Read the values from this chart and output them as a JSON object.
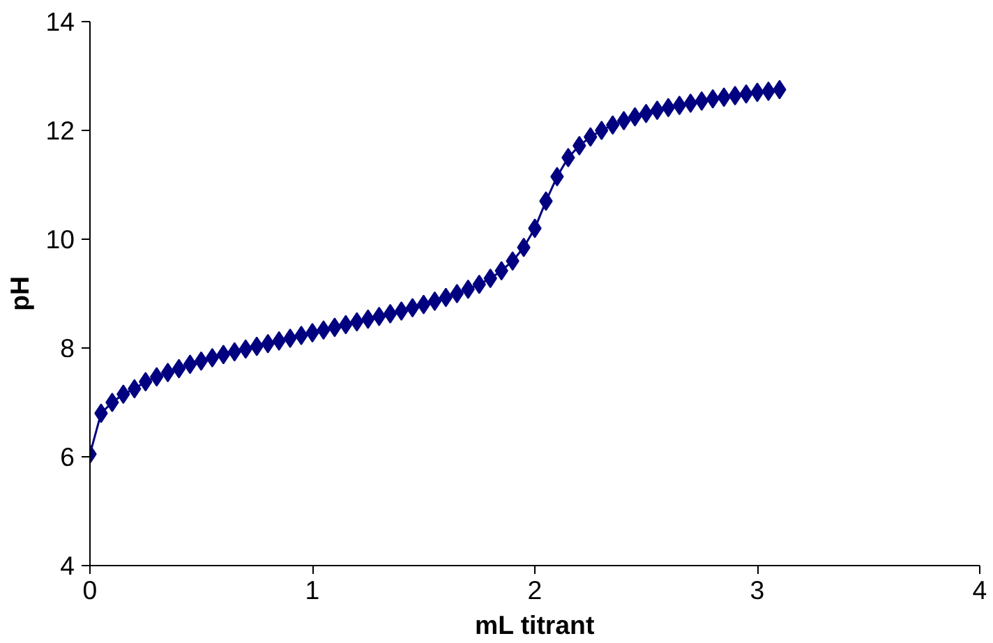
{
  "chart_data": {
    "type": "line",
    "xlabel": "mL titrant",
    "ylabel": "pH",
    "x": [
      0,
      0.05,
      0.1,
      0.15,
      0.2,
      0.25,
      0.3,
      0.35,
      0.4,
      0.45,
      0.5,
      0.55,
      0.6,
      0.65,
      0.7,
      0.75,
      0.8,
      0.85,
      0.9,
      0.95,
      1.0,
      1.05,
      1.1,
      1.15,
      1.2,
      1.25,
      1.3,
      1.35,
      1.4,
      1.45,
      1.5,
      1.55,
      1.6,
      1.65,
      1.7,
      1.75,
      1.8,
      1.85,
      1.9,
      1.95,
      2.0,
      2.05,
      2.1,
      2.15,
      2.2,
      2.25,
      2.3,
      2.35,
      2.4,
      2.45,
      2.5,
      2.55,
      2.6,
      2.65,
      2.7,
      2.75,
      2.8,
      2.85,
      2.9,
      2.95,
      3.0,
      3.05,
      3.1
    ],
    "series": [
      {
        "color": "#000080",
        "values": [
          6.05,
          6.8,
          7.0,
          7.15,
          7.25,
          7.38,
          7.47,
          7.55,
          7.62,
          7.7,
          7.76,
          7.82,
          7.88,
          7.93,
          7.98,
          8.03,
          8.08,
          8.13,
          8.18,
          8.23,
          8.28,
          8.33,
          8.38,
          8.43,
          8.48,
          8.53,
          8.58,
          8.63,
          8.68,
          8.74,
          8.8,
          8.86,
          8.93,
          9.0,
          9.08,
          9.17,
          9.28,
          9.42,
          9.6,
          9.85,
          10.2,
          10.7,
          11.15,
          11.5,
          11.72,
          11.88,
          12.0,
          12.1,
          12.18,
          12.25,
          12.31,
          12.37,
          12.42,
          12.46,
          12.5,
          12.54,
          12.58,
          12.61,
          12.64,
          12.67,
          12.7,
          12.72,
          12.75
        ]
      }
    ],
    "xlim": [
      0,
      4
    ],
    "xticks": [
      0,
      1,
      2,
      3,
      4
    ],
    "ylim": [
      4,
      14
    ],
    "yticks": [
      4,
      6,
      8,
      10,
      12,
      14
    ],
    "grid": false,
    "marker": "diamond",
    "line_style": "solid"
  }
}
